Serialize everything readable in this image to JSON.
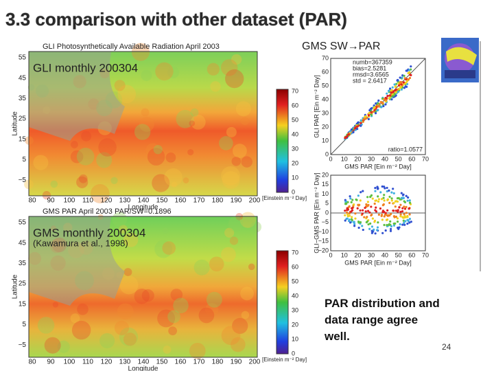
{
  "title": "3.3 comparison with other dataset (PAR)",
  "maps": [
    {
      "heading": "GLI Photosynthetically Available Radiation April 2003",
      "caption": "GLI monthly 200304",
      "y_label": "Latitude",
      "x_label": "Longitude",
      "y_ticks": [
        "55",
        "45",
        "35",
        "25",
        "15",
        "5",
        "−5"
      ],
      "x_ticks": [
        "80",
        "90",
        "100",
        "110",
        "120",
        "130",
        "140",
        "150",
        "160",
        "170",
        "180",
        "190",
        "200"
      ],
      "colorbar_ticks": [
        "70",
        "60",
        "50",
        "40",
        "30",
        "20",
        "10",
        "0"
      ],
      "colorbar_unit": "[Einstein m⁻² Day]"
    },
    {
      "heading": "GMS PAR April 2003   PAR/SW=0.1896",
      "caption": "GMS monthly 200304",
      "note": "(Kawamura et al., 1998)",
      "y_label": "Latitude",
      "x_label": "Longitude",
      "y_ticks": [
        "55",
        "45",
        "35",
        "25",
        "15",
        "5",
        "−5"
      ],
      "x_ticks": [
        "80",
        "90",
        "100",
        "110",
        "120",
        "130",
        "140",
        "150",
        "160",
        "170",
        "180",
        "190",
        "200"
      ],
      "colorbar_ticks": [
        "70",
        "60",
        "50",
        "40",
        "30",
        "20",
        "10",
        "0"
      ],
      "colorbar_unit": "[Einstein m⁻² Day]"
    }
  ],
  "scatter_title": "GMS SW→PAR",
  "scatters": [
    {
      "stats": [
        "numb=367359",
        "bias=2.5281",
        "rmsd=3.6565",
        "std = 2.6417"
      ],
      "ratio": "ratio=1.0577",
      "y_label": "GLI PAR [Ein m⁻² Day]",
      "x_label": "GMS PAR [Ein m⁻² Day]",
      "y_ticks": [
        "70",
        "60",
        "50",
        "40",
        "30",
        "20",
        "10",
        "0"
      ],
      "x_ticks": [
        "0",
        "10",
        "20",
        "30",
        "40",
        "50",
        "60",
        "70"
      ]
    },
    {
      "y_label": "GLI−GMS PAR [Ein m⁻² Day]",
      "x_label": "GMS PAR [Ein m⁻² Day]",
      "y_ticks": [
        "20",
        "15",
        "10",
        "5",
        "0",
        "−5",
        "−10",
        "−15",
        "−20"
      ],
      "x_ticks": [
        "0",
        "10",
        "20",
        "30",
        "40",
        "50",
        "60",
        "70"
      ]
    }
  ],
  "conclusion": "PAR distribution and data range agree well.",
  "page_number": "24"
}
